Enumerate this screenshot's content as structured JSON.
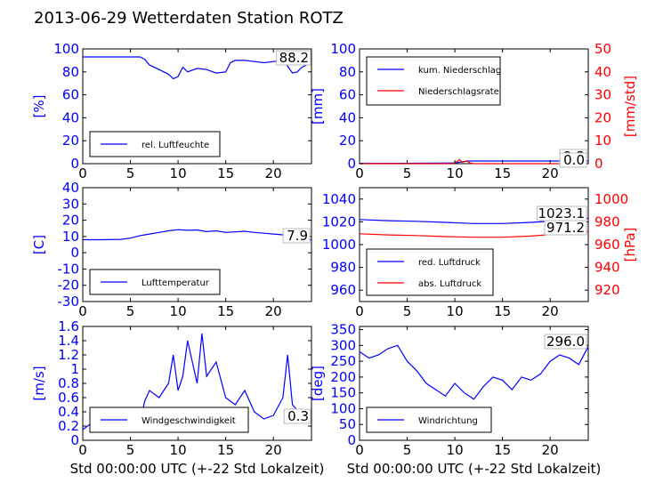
{
  "figure": {
    "title": "2013-06-29 Wetterdaten Station ROTZ",
    "xlabel": "Std 00:00:00 UTC (+-22 Std Lokalzeit)"
  },
  "chart_data": [
    {
      "type": "line",
      "panel": "top-left",
      "ylabel": "[%]",
      "xlim": [
        0,
        24
      ],
      "ylim": [
        0,
        100
      ],
      "yticks": [
        0,
        20,
        40,
        60,
        80,
        100
      ],
      "xticks": [
        0,
        5,
        10,
        15,
        20
      ],
      "legend_position": "lower-left",
      "annotations": [
        "88.2"
      ],
      "series": [
        {
          "name": "rel. Luftfeuchte",
          "color": "#0000ff",
          "x": [
            0,
            2,
            4,
            6,
            6.5,
            7,
            8,
            9,
            9.5,
            10,
            10.5,
            11,
            12,
            13,
            14,
            15,
            15.5,
            16,
            17,
            18,
            19,
            20,
            21,
            21.5,
            22,
            22.5,
            23,
            24
          ],
          "y": [
            93,
            93,
            93,
            93,
            91,
            86,
            82,
            78,
            74,
            76,
            84,
            80,
            83,
            82,
            79,
            80,
            88,
            90,
            90,
            89,
            88,
            89,
            90,
            85,
            79,
            80,
            84,
            88
          ]
        }
      ]
    },
    {
      "type": "line",
      "panel": "top-right",
      "ylabel": "[mm]",
      "ylabel_right": "[mm/std]",
      "xlim": [
        0,
        24
      ],
      "ylim": [
        0,
        100
      ],
      "ylim_right": [
        0,
        50
      ],
      "yticks": [
        0,
        20,
        40,
        60,
        80,
        100
      ],
      "yticks_right": [
        0,
        10,
        20,
        30,
        40,
        50
      ],
      "xticks": [
        0,
        5,
        10,
        15,
        20
      ],
      "legend_position": "upper-left",
      "annotations": [
        "2.3",
        "0.0"
      ],
      "series": [
        {
          "name": "kum. Niederschlag",
          "color": "#0000ff",
          "axis": "left",
          "x": [
            0,
            5,
            10,
            10.8,
            11.5,
            15,
            20,
            24
          ],
          "y": [
            0.2,
            0.3,
            0.6,
            1.6,
            2.3,
            2.3,
            2.3,
            2.3
          ]
        },
        {
          "name": "Niederschlagsrate",
          "color": "#ff0000",
          "axis": "right",
          "x": [
            0,
            9.8,
            10.2,
            10.5,
            10.8,
            11.2,
            11.6,
            12,
            24
          ],
          "y": [
            0,
            0,
            0.8,
            1.8,
            0.6,
            1.2,
            0.3,
            0,
            0
          ]
        }
      ]
    },
    {
      "type": "line",
      "panel": "middle-left",
      "ylabel": "[C]",
      "xlim": [
        0,
        24
      ],
      "ylim": [
        -30,
        40
      ],
      "yticks": [
        -30,
        -20,
        -10,
        0,
        10,
        20,
        30,
        40
      ],
      "xticks": [
        0,
        5,
        10,
        15,
        20
      ],
      "legend_position": "lower-left",
      "annotations": [
        "7.9"
      ],
      "series": [
        {
          "name": "Lufttemperatur",
          "color": "#0000ff",
          "x": [
            0,
            2,
            4,
            5,
            6,
            7,
            8,
            9,
            10,
            11,
            12,
            13,
            14,
            15,
            16,
            17,
            18,
            19,
            20,
            21,
            22,
            23,
            24
          ],
          "y": [
            8,
            8,
            8.2,
            9,
            10.5,
            11.5,
            12.5,
            13.5,
            14.2,
            13.8,
            14,
            13,
            13.5,
            12.5,
            12.8,
            13.2,
            12.5,
            12,
            11.5,
            11,
            10,
            9,
            7.9
          ]
        }
      ]
    },
    {
      "type": "line",
      "panel": "middle-right",
      "ylabel_right": "[hPa]",
      "xlim": [
        0,
        24
      ],
      "ylim": [
        950,
        1050
      ],
      "ylim_right": [
        910,
        1010
      ],
      "yticks": [
        960,
        980,
        1000,
        1020,
        1040
      ],
      "yticks_right": [
        920,
        940,
        960,
        980,
        1000
      ],
      "xticks": [
        0,
        5,
        10,
        15,
        20
      ],
      "legend_position": "lower-left",
      "annotations": [
        "1023.1",
        "971.2"
      ],
      "series": [
        {
          "name": "red. Luftdruck",
          "color": "#0000ff",
          "axis": "left",
          "x": [
            0,
            3,
            6,
            9,
            12,
            15,
            18,
            21,
            24
          ],
          "y": [
            1022,
            1021,
            1020.5,
            1019.5,
            1018.5,
            1018.5,
            1019.5,
            1021,
            1023.1
          ]
        },
        {
          "name": "abs. Luftdruck",
          "color": "#ff0000",
          "axis": "right",
          "x": [
            0,
            3,
            6,
            9,
            12,
            15,
            18,
            21,
            24
          ],
          "y": [
            969.5,
            968.5,
            968,
            967,
            966.5,
            966.5,
            967.5,
            969.5,
            971.2
          ]
        }
      ]
    },
    {
      "type": "line",
      "panel": "bottom-left",
      "ylabel": "[m/s]",
      "xlim": [
        0,
        24
      ],
      "ylim": [
        0,
        1.6
      ],
      "yticks": [
        0.0,
        0.2,
        0.4,
        0.6,
        0.8,
        1.0,
        1.2,
        1.4,
        1.6
      ],
      "xticks": [
        0,
        5,
        10,
        15,
        20
      ],
      "legend_position": "lower-left",
      "annotations": [
        "0.3"
      ],
      "series": [
        {
          "name": "Windgeschwindigkeit",
          "color": "#0000ff",
          "x": [
            0,
            1,
            2,
            3,
            4,
            5,
            6,
            6.5,
            7,
            8,
            9,
            9.5,
            10,
            10.5,
            11,
            12,
            12.5,
            13,
            14,
            15,
            16,
            17,
            18,
            19,
            20,
            21,
            21.5,
            22,
            23,
            24
          ],
          "y": [
            0.15,
            0.25,
            0.2,
            0.3,
            0.2,
            0.3,
            0.25,
            0.55,
            0.7,
            0.6,
            0.8,
            1.2,
            0.7,
            0.9,
            1.4,
            0.8,
            1.5,
            0.9,
            1.1,
            0.6,
            0.5,
            0.7,
            0.4,
            0.3,
            0.35,
            0.6,
            1.2,
            0.5,
            0.35,
            0.3
          ]
        }
      ]
    },
    {
      "type": "line",
      "panel": "bottom-right",
      "ylabel": "[deg]",
      "xlim": [
        0,
        24
      ],
      "ylim": [
        0,
        360
      ],
      "yticks": [
        0,
        50,
        100,
        150,
        200,
        250,
        300,
        350
      ],
      "xticks": [
        0,
        5,
        10,
        15,
        20
      ],
      "legend_position": "lower-left",
      "annotations": [
        "296.0"
      ],
      "series": [
        {
          "name": "Windrichtung",
          "color": "#0000ff",
          "x": [
            0,
            1,
            2,
            3,
            4,
            5,
            6,
            7,
            8,
            9,
            10,
            11,
            12,
            13,
            14,
            15,
            16,
            17,
            18,
            19,
            20,
            21,
            22,
            23,
            24
          ],
          "y": [
            280,
            260,
            270,
            290,
            300,
            250,
            220,
            180,
            160,
            140,
            180,
            150,
            130,
            170,
            200,
            190,
            160,
            200,
            190,
            210,
            250,
            270,
            260,
            240,
            296
          ]
        }
      ]
    }
  ]
}
